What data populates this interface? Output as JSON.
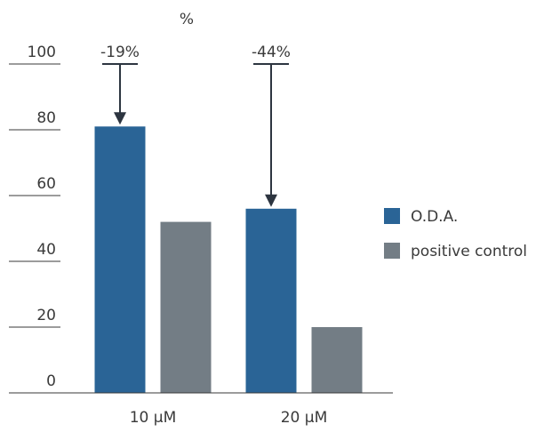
{
  "chart_data": {
    "type": "bar",
    "ylabel": "%",
    "ylim": [
      0,
      100
    ],
    "yticks": [
      0,
      20,
      40,
      60,
      80,
      100
    ],
    "categories": [
      "10 µM",
      "20 µM"
    ],
    "series": [
      {
        "name": "O.D.A.",
        "color": "#2a6496",
        "values": [
          81,
          56
        ]
      },
      {
        "name": "positive control",
        "color": "#737d85",
        "values": [
          52,
          20
        ]
      }
    ],
    "annotations": [
      {
        "label": "-19%",
        "category_index": 0,
        "from": 100,
        "to": 81
      },
      {
        "label": "-44%",
        "category_index": 1,
        "from": 100,
        "to": 56
      }
    ],
    "legend_position": "right",
    "grid": false
  }
}
